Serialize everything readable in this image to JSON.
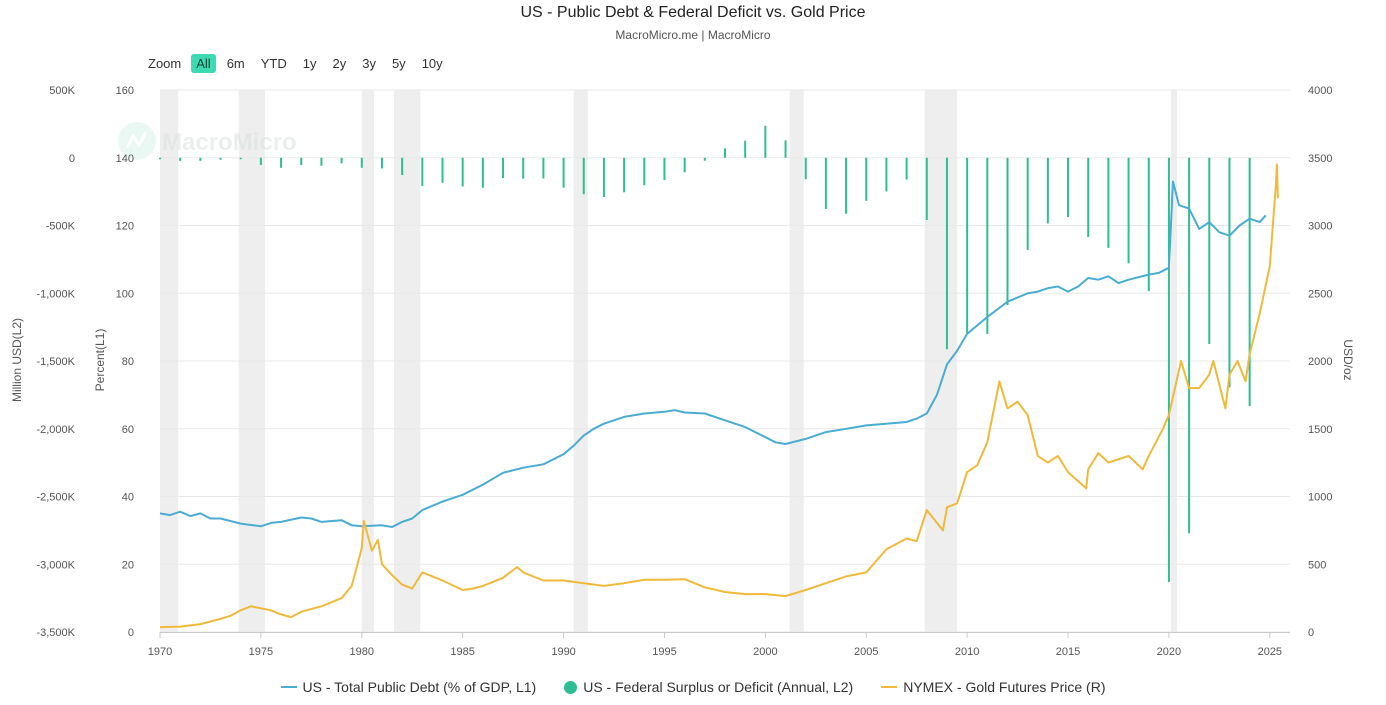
{
  "header": {
    "title": "US - Public Debt & Federal Deficit vs. Gold Price",
    "subtitle": "MacroMicro.me | MacroMicro",
    "watermark": "MacroMicro"
  },
  "zoom": {
    "label": "Zoom",
    "buttons": [
      "All",
      "6m",
      "YTD",
      "1y",
      "2y",
      "3y",
      "5y",
      "10y"
    ],
    "active": "All"
  },
  "colors": {
    "debt": "#4aacd2",
    "deficit": "#2fbe94",
    "gold": "#f0b93a",
    "recession": "#eeeeee",
    "grid": "#e8e8e8"
  },
  "chart_data": {
    "type": "line",
    "title": "US - Public Debt & Federal Deficit vs. Gold Price",
    "x_ticks": [
      "1970",
      "1975",
      "1980",
      "1985",
      "1990",
      "1995",
      "2000",
      "2005",
      "2010",
      "2015",
      "2020",
      "2025"
    ],
    "xlim": [
      1970,
      2026
    ],
    "axes": {
      "left_outer": {
        "label": "Million USD(L2)",
        "range": [
          -3500000,
          500000
        ],
        "ticks": [
          "500K",
          "0",
          "-500K",
          "-1,000K",
          "-1,500K",
          "-2,000K",
          "-2,500K",
          "-3,000K",
          "-3,500K"
        ]
      },
      "left_inner": {
        "label": "Percent(L1)",
        "range": [
          0,
          160
        ],
        "ticks": [
          "160",
          "140",
          "120",
          "100",
          "80",
          "60",
          "40",
          "20",
          "0"
        ]
      },
      "right": {
        "label": "USD/oz",
        "range": [
          0,
          4000
        ],
        "ticks": [
          "4000",
          "3500",
          "3000",
          "2500",
          "2000",
          "1500",
          "1000",
          "500",
          "0"
        ]
      }
    },
    "recessions": [
      [
        1970.0,
        1970.9
      ],
      [
        1973.9,
        1975.2
      ],
      [
        1980.0,
        1980.6
      ],
      [
        1981.6,
        1982.9
      ],
      [
        1990.5,
        1991.2
      ],
      [
        2001.2,
        2001.9
      ],
      [
        2007.9,
        2009.5
      ],
      [
        2020.1,
        2020.4
      ]
    ],
    "series": [
      {
        "name": "US - Total Public Debt (% of GDP, L1)",
        "axis": "left_inner",
        "points": [
          [
            1970,
            35
          ],
          [
            1970.5,
            34.5
          ],
          [
            1971,
            35.5
          ],
          [
            1971.5,
            34.2
          ],
          [
            1972,
            35
          ],
          [
            1972.5,
            33.5
          ],
          [
            1973,
            33.5
          ],
          [
            1974,
            32
          ],
          [
            1975,
            31.2
          ],
          [
            1975.5,
            32.2
          ],
          [
            1976,
            32.5
          ],
          [
            1977,
            33.8
          ],
          [
            1977.5,
            33.5
          ],
          [
            1978,
            32.5
          ],
          [
            1979,
            33
          ],
          [
            1979.5,
            31.5
          ],
          [
            1980,
            31.2
          ],
          [
            1981,
            31.5
          ],
          [
            1981.5,
            31
          ],
          [
            1982,
            32.5
          ],
          [
            1982.5,
            33.5
          ],
          [
            1983,
            36
          ],
          [
            1984,
            38.5
          ],
          [
            1985,
            40.5
          ],
          [
            1986,
            43.5
          ],
          [
            1987,
            47
          ],
          [
            1988,
            48.5
          ],
          [
            1989,
            49.5
          ],
          [
            1990,
            52.5
          ],
          [
            1990.5,
            55
          ],
          [
            1991,
            58
          ],
          [
            1991.5,
            60
          ],
          [
            1992,
            61.5
          ],
          [
            1993,
            63.5
          ],
          [
            1994,
            64.5
          ],
          [
            1995,
            65
          ],
          [
            1995.5,
            65.5
          ],
          [
            1996,
            64.8
          ],
          [
            1997,
            64.5
          ],
          [
            1998,
            62.5
          ],
          [
            1999,
            60.5
          ],
          [
            2000,
            57.5
          ],
          [
            2000.5,
            56
          ],
          [
            2001,
            55.5
          ],
          [
            2002,
            57
          ],
          [
            2003,
            59
          ],
          [
            2004,
            60
          ],
          [
            2005,
            61
          ],
          [
            2006,
            61.5
          ],
          [
            2007,
            62
          ],
          [
            2007.5,
            63
          ],
          [
            2008,
            64.5
          ],
          [
            2008.5,
            70
          ],
          [
            2009,
            79
          ],
          [
            2009.5,
            83
          ],
          [
            2010,
            88
          ],
          [
            2011,
            93
          ],
          [
            2012,
            97.5
          ],
          [
            2013,
            100
          ],
          [
            2013.5,
            100.5
          ],
          [
            2014,
            101.5
          ],
          [
            2014.5,
            102
          ],
          [
            2015,
            100.5
          ],
          [
            2015.5,
            102
          ],
          [
            2016,
            104.5
          ],
          [
            2016.5,
            104
          ],
          [
            2017,
            105
          ],
          [
            2017.5,
            103
          ],
          [
            2018,
            104
          ],
          [
            2019,
            105.5
          ],
          [
            2019.5,
            106
          ],
          [
            2020,
            107.5
          ],
          [
            2020.2,
            133
          ],
          [
            2020.5,
            126
          ],
          [
            2021,
            125
          ],
          [
            2021.5,
            119
          ],
          [
            2022,
            121
          ],
          [
            2022.5,
            118
          ],
          [
            2023,
            117
          ],
          [
            2023.5,
            120
          ],
          [
            2024,
            122
          ],
          [
            2024.5,
            121
          ],
          [
            2024.8,
            123
          ]
        ]
      },
      {
        "name": "US - Federal Surplus or Deficit (Annual, L2)",
        "axis": "left_outer",
        "type": "bar",
        "points": [
          [
            1970,
            -3000
          ],
          [
            1971,
            -23000
          ],
          [
            1972,
            -23000
          ],
          [
            1973,
            -15000
          ],
          [
            1974,
            -6000
          ],
          [
            1975,
            -53000
          ],
          [
            1976,
            -74000
          ],
          [
            1977,
            -54000
          ],
          [
            1978,
            -59000
          ],
          [
            1979,
            -41000
          ],
          [
            1980,
            -74000
          ],
          [
            1981,
            -79000
          ],
          [
            1982,
            -128000
          ],
          [
            1983,
            -208000
          ],
          [
            1984,
            -185000
          ],
          [
            1985,
            -212000
          ],
          [
            1986,
            -221000
          ],
          [
            1987,
            -150000
          ],
          [
            1988,
            -155000
          ],
          [
            1989,
            -153000
          ],
          [
            1990,
            -221000
          ],
          [
            1991,
            -269000
          ],
          [
            1992,
            -290000
          ],
          [
            1993,
            -255000
          ],
          [
            1994,
            -203000
          ],
          [
            1995,
            -164000
          ],
          [
            1996,
            -107000
          ],
          [
            1997,
            -22000
          ],
          [
            1998,
            69000
          ],
          [
            1999,
            126000
          ],
          [
            2000,
            236000
          ],
          [
            2001,
            128000
          ],
          [
            2002,
            -158000
          ],
          [
            2003,
            -378000
          ],
          [
            2004,
            -413000
          ],
          [
            2005,
            -318000
          ],
          [
            2006,
            -248000
          ],
          [
            2007,
            -161000
          ],
          [
            2008,
            -459000
          ],
          [
            2009,
            -1413000
          ],
          [
            2010,
            -1294000
          ],
          [
            2011,
            -1300000
          ],
          [
            2012,
            -1087000
          ],
          [
            2013,
            -680000
          ],
          [
            2014,
            -485000
          ],
          [
            2015,
            -438000
          ],
          [
            2016,
            -585000
          ],
          [
            2017,
            -665000
          ],
          [
            2018,
            -779000
          ],
          [
            2019,
            -984000
          ],
          [
            2020,
            -3132000
          ],
          [
            2021,
            -2772000
          ],
          [
            2022,
            -1375000
          ],
          [
            2023,
            -1695000
          ],
          [
            2024,
            -1833000
          ]
        ]
      },
      {
        "name": "NYMEX - Gold Futures Price (R)",
        "axis": "right",
        "points": [
          [
            1970,
            36
          ],
          [
            1971,
            40
          ],
          [
            1972,
            58
          ],
          [
            1973,
            97
          ],
          [
            1973.5,
            120
          ],
          [
            1974,
            160
          ],
          [
            1974.5,
            190
          ],
          [
            1975,
            175
          ],
          [
            1975.5,
            160
          ],
          [
            1976,
            130
          ],
          [
            1976.5,
            110
          ],
          [
            1977,
            150
          ],
          [
            1978,
            190
          ],
          [
            1979,
            250
          ],
          [
            1979.5,
            340
          ],
          [
            1980,
            620
          ],
          [
            1980.1,
            820
          ],
          [
            1980.5,
            600
          ],
          [
            1980.8,
            680
          ],
          [
            1981,
            500
          ],
          [
            1981.5,
            420
          ],
          [
            1982,
            350
          ],
          [
            1982.5,
            320
          ],
          [
            1983,
            440
          ],
          [
            1983.5,
            410
          ],
          [
            1984,
            380
          ],
          [
            1985,
            310
          ],
          [
            1985.5,
            320
          ],
          [
            1986,
            340
          ],
          [
            1987,
            400
          ],
          [
            1987.7,
            480
          ],
          [
            1988,
            440
          ],
          [
            1989,
            380
          ],
          [
            1990,
            380
          ],
          [
            1991,
            360
          ],
          [
            1992,
            340
          ],
          [
            1993,
            360
          ],
          [
            1994,
            385
          ],
          [
            1995,
            385
          ],
          [
            1996,
            390
          ],
          [
            1997,
            330
          ],
          [
            1998,
            295
          ],
          [
            1999,
            280
          ],
          [
            2000,
            280
          ],
          [
            2001,
            265
          ],
          [
            2002,
            310
          ],
          [
            2003,
            360
          ],
          [
            2004,
            410
          ],
          [
            2005,
            440
          ],
          [
            2006,
            610
          ],
          [
            2007,
            690
          ],
          [
            2007.5,
            670
          ],
          [
            2008,
            900
          ],
          [
            2008.8,
            750
          ],
          [
            2009,
            920
          ],
          [
            2009.5,
            950
          ],
          [
            2010,
            1180
          ],
          [
            2010.5,
            1230
          ],
          [
            2011,
            1400
          ],
          [
            2011.6,
            1850
          ],
          [
            2012,
            1650
          ],
          [
            2012.5,
            1700
          ],
          [
            2013,
            1600
          ],
          [
            2013.5,
            1300
          ],
          [
            2014,
            1250
          ],
          [
            2014.5,
            1300
          ],
          [
            2015,
            1180
          ],
          [
            2015.9,
            1060
          ],
          [
            2016,
            1200
          ],
          [
            2016.5,
            1320
          ],
          [
            2017,
            1250
          ],
          [
            2018,
            1300
          ],
          [
            2018.7,
            1200
          ],
          [
            2019,
            1300
          ],
          [
            2019.7,
            1500
          ],
          [
            2020,
            1600
          ],
          [
            2020.6,
            2000
          ],
          [
            2021,
            1800
          ],
          [
            2021.5,
            1800
          ],
          [
            2022,
            1900
          ],
          [
            2022.2,
            2000
          ],
          [
            2022.8,
            1650
          ],
          [
            2023,
            1900
          ],
          [
            2023.4,
            2000
          ],
          [
            2023.8,
            1850
          ],
          [
            2024,
            2050
          ],
          [
            2024.5,
            2350
          ],
          [
            2025,
            2700
          ],
          [
            2025.1,
            2900
          ],
          [
            2025.3,
            3300
          ],
          [
            2025.35,
            3450
          ],
          [
            2025.4,
            3200
          ]
        ]
      }
    ]
  },
  "legend": [
    {
      "label": "US - Total Public Debt (% of GDP, L1)",
      "kind": "line",
      "color": "#4aacd2"
    },
    {
      "label": "US - Federal Surplus or Deficit (Annual, L2)",
      "kind": "dot",
      "color": "#2fbe94"
    },
    {
      "label": "NYMEX - Gold Futures Price (R)",
      "kind": "line",
      "color": "#f0b93a"
    }
  ]
}
